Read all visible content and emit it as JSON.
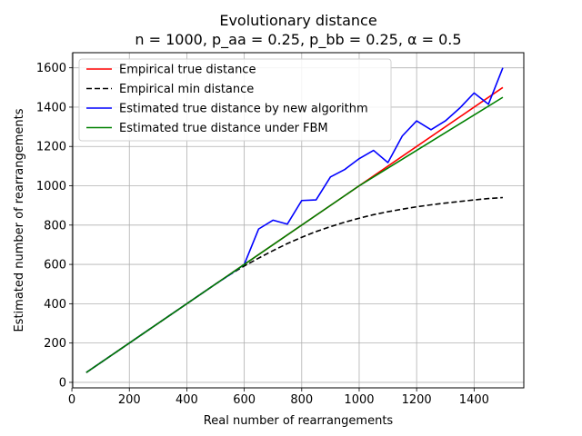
{
  "chart_data": {
    "type": "line",
    "title": "Evolutionary distance",
    "subtitle": "n = 1000, p_aa = 0.25, p_bb = 0.25, α = 0.5",
    "xlabel": "Real number of rearrangements",
    "ylabel": "Estimated number of rearrangements",
    "xlim": [
      3,
      1573
    ],
    "ylim": [
      -28,
      1677
    ],
    "xticks": [
      0,
      200,
      400,
      600,
      800,
      1000,
      1200,
      1400
    ],
    "yticks": [
      0,
      200,
      400,
      600,
      800,
      1000,
      1200,
      1400,
      1600
    ],
    "grid": true,
    "legend_position": "top-left",
    "series": [
      {
        "name": "Empirical true distance",
        "color": "#ff0000",
        "dash": "solid",
        "x": [
          50,
          1500
        ],
        "y": [
          50,
          1500
        ]
      },
      {
        "name": "Empirical min distance",
        "color": "#000000",
        "dash": "dashed",
        "x": [
          50,
          100,
          150,
          200,
          250,
          300,
          350,
          400,
          450,
          500,
          550,
          600,
          650,
          700,
          750,
          800,
          850,
          900,
          950,
          1000,
          1050,
          1100,
          1150,
          1200,
          1250,
          1300,
          1350,
          1400,
          1450,
          1500
        ],
        "y": [
          50,
          100,
          150,
          200,
          250,
          300,
          350,
          400,
          450,
          500,
          548,
          592,
          632,
          670,
          706,
          738,
          767,
          792,
          815,
          835,
          853,
          868,
          881,
          893,
          903,
          912,
          920,
          928,
          935,
          940
        ]
      },
      {
        "name": "Estimated true distance by new algorithm",
        "color": "#0000ff",
        "dash": "solid",
        "x": [
          50,
          100,
          150,
          200,
          250,
          300,
          350,
          400,
          450,
          500,
          550,
          600,
          650,
          700,
          750,
          800,
          850,
          900,
          950,
          1000,
          1050,
          1100,
          1150,
          1200,
          1250,
          1300,
          1350,
          1400,
          1450,
          1500
        ],
        "y": [
          50,
          100,
          150,
          200,
          250,
          300,
          350,
          400,
          450,
          500,
          548,
          600,
          780,
          825,
          805,
          925,
          928,
          1045,
          1083,
          1138,
          1180,
          1118,
          1253,
          1330,
          1285,
          1330,
          1395,
          1472,
          1415,
          1600
        ]
      },
      {
        "name": "Estimated true distance under FBM",
        "color": "#008000",
        "dash": "solid",
        "x": [
          50,
          1000,
          1500
        ],
        "y": [
          50,
          1000,
          1450
        ]
      }
    ]
  }
}
